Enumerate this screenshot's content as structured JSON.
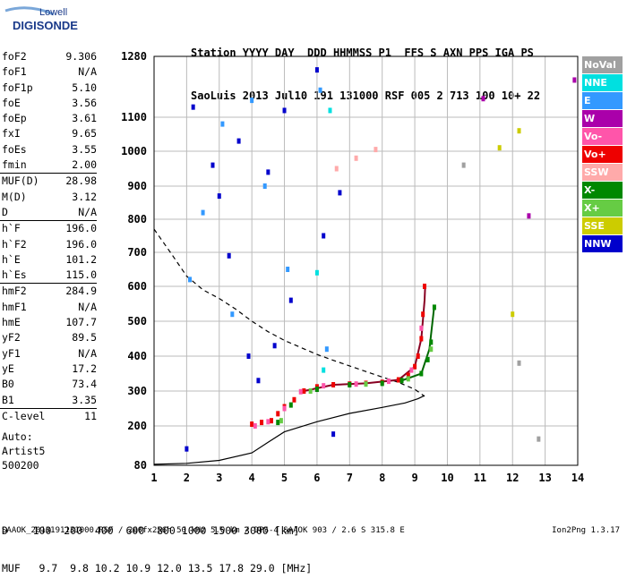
{
  "logo": {
    "line1": "Lowell",
    "line2": "DIGISONDE"
  },
  "header": {
    "labels": "Station YYYY DAY  DDD HHMMSS P1  FFS S AXN PPS IGA PS",
    "values": "SaoLuis 2013 Jul10 191 131000 RSF 005 2 713 100 10+ 22"
  },
  "params": [
    {
      "name": "foF2",
      "value": "9.306"
    },
    {
      "name": "foF1",
      "value": "N/A"
    },
    {
      "name": "foF1p",
      "value": "5.10"
    },
    {
      "name": "foE",
      "value": "3.56"
    },
    {
      "name": "foEp",
      "value": "3.61"
    },
    {
      "name": "fxI",
      "value": "9.65"
    },
    {
      "name": "foEs",
      "value": "3.55"
    },
    {
      "name": "fmin",
      "value": "2.00"
    },
    {
      "name": "MUF(D)",
      "value": "28.98"
    },
    {
      "name": "M(D)",
      "value": "3.12"
    },
    {
      "name": "D",
      "value": "N/A"
    },
    {
      "name": "h`F",
      "value": "196.0"
    },
    {
      "name": "h`F2",
      "value": "196.0"
    },
    {
      "name": "h`E",
      "value": "101.2"
    },
    {
      "name": "h`Es",
      "value": "115.0"
    },
    {
      "name": "hmF2",
      "value": "284.9"
    },
    {
      "name": "hmF1",
      "value": "N/A"
    },
    {
      "name": "hmE",
      "value": "107.7"
    },
    {
      "name": "yF2",
      "value": "89.5"
    },
    {
      "name": "yF1",
      "value": "N/A"
    },
    {
      "name": "yE",
      "value": "17.2"
    },
    {
      "name": "B0",
      "value": "73.4"
    },
    {
      "name": "B1",
      "value": "3.35"
    },
    {
      "name": "C-level",
      "value": "11"
    }
  ],
  "auto": {
    "line1": "Auto:",
    "line2": "Artist5",
    "line3": "500200"
  },
  "legend": [
    {
      "label": "NoVal",
      "color": "#a0a0a0"
    },
    {
      "label": "NNE",
      "color": "#00e0e0"
    },
    {
      "label": "E",
      "color": "#3399ff"
    },
    {
      "label": "W",
      "color": "#aa00aa"
    },
    {
      "label": "Vo-",
      "color": "#ff55aa"
    },
    {
      "label": "Vo+",
      "color": "#ee0000"
    },
    {
      "label": "SSW",
      "color": "#ffaaaa"
    },
    {
      "label": "X-",
      "color": "#008800"
    },
    {
      "label": "X+",
      "color": "#66cc44"
    },
    {
      "label": "SSE",
      "color": "#cccc00"
    },
    {
      "label": "NNW",
      "color": "#0000cc"
    }
  ],
  "muf_table": {
    "d_row": "D    100  200  400  600  800 1000 1500 3000 [km]",
    "muf_row": "MUF   9.7  9.8 10.2 10.9 12.0 13.5 17.8 29.0 [MHz]"
  },
  "footer": "SAAOK_2013191131000.RSF / 260fx256h 50 kHz 5.0 km / DPS-4 SAAOK 903 / 2.6 S 315.8 E",
  "version": "Ion2Png 1.3.17",
  "chart_data": {
    "type": "scatter",
    "xlabel": "",
    "ylabel": "",
    "xlim": [
      1,
      14
    ],
    "ylim": [
      80,
      1280
    ],
    "x_ticks": [
      1,
      2,
      3,
      4,
      5,
      6,
      7,
      8,
      9,
      10,
      11,
      12,
      13,
      14
    ],
    "y_ticks": [
      80,
      200,
      300,
      400,
      500,
      600,
      700,
      800,
      900,
      1000,
      1100,
      1280
    ],
    "grid": true,
    "legend_position": "right",
    "series": [
      {
        "name": "Vo+",
        "color": "#ee0000",
        "points": [
          [
            4.0,
            205
          ],
          [
            4.3,
            210
          ],
          [
            4.6,
            215
          ],
          [
            4.8,
            235
          ],
          [
            5.0,
            255
          ],
          [
            5.3,
            275
          ],
          [
            5.6,
            300
          ],
          [
            6.0,
            312
          ],
          [
            6.5,
            318
          ],
          [
            7.0,
            320
          ],
          [
            7.5,
            322
          ],
          [
            8.0,
            325
          ],
          [
            8.5,
            332
          ],
          [
            8.8,
            345
          ],
          [
            9.0,
            370
          ],
          [
            9.1,
            400
          ],
          [
            9.2,
            450
          ],
          [
            9.25,
            520
          ],
          [
            9.3,
            600
          ]
        ]
      },
      {
        "name": "Vo-",
        "color": "#ff55aa",
        "points": [
          [
            4.1,
            200
          ],
          [
            4.5,
            212
          ],
          [
            5.0,
            250
          ],
          [
            5.5,
            298
          ],
          [
            6.2,
            315
          ],
          [
            7.2,
            320
          ],
          [
            8.2,
            328
          ],
          [
            8.9,
            360
          ],
          [
            9.2,
            480
          ]
        ]
      },
      {
        "name": "X-",
        "color": "#008800",
        "points": [
          [
            4.8,
            210
          ],
          [
            5.2,
            260
          ],
          [
            6.0,
            305
          ],
          [
            7.0,
            318
          ],
          [
            8.0,
            322
          ],
          [
            8.6,
            330
          ],
          [
            9.2,
            350
          ],
          [
            9.4,
            390
          ],
          [
            9.5,
            440
          ],
          [
            9.6,
            540
          ]
        ]
      },
      {
        "name": "X+",
        "color": "#66cc44",
        "points": [
          [
            4.9,
            215
          ],
          [
            5.8,
            300
          ],
          [
            7.5,
            320
          ],
          [
            8.8,
            335
          ],
          [
            9.5,
            420
          ]
        ]
      },
      {
        "name": "NNW",
        "color": "#0000cc",
        "points": [
          [
            2.0,
            130
          ],
          [
            2.2,
            1130
          ],
          [
            2.8,
            960
          ],
          [
            3.0,
            870
          ],
          [
            3.3,
            690
          ],
          [
            3.6,
            1030
          ],
          [
            3.9,
            400
          ],
          [
            4.2,
            330
          ],
          [
            4.5,
            940
          ],
          [
            4.7,
            430
          ],
          [
            5.0,
            1120
          ],
          [
            5.2,
            560
          ],
          [
            6.0,
            1240
          ],
          [
            6.2,
            750
          ],
          [
            6.5,
            175
          ],
          [
            6.7,
            880
          ]
        ]
      },
      {
        "name": "E",
        "color": "#3399ff",
        "points": [
          [
            2.1,
            620
          ],
          [
            2.5,
            820
          ],
          [
            3.1,
            1080
          ],
          [
            3.4,
            520
          ],
          [
            4.0,
            1150
          ],
          [
            4.4,
            900
          ],
          [
            5.1,
            650
          ],
          [
            6.1,
            1180
          ],
          [
            6.3,
            420
          ]
        ]
      },
      {
        "name": "NNE",
        "color": "#00e0e0",
        "points": [
          [
            6.0,
            640
          ],
          [
            6.2,
            360
          ],
          [
            6.4,
            1120
          ]
        ]
      },
      {
        "name": "W",
        "color": "#aa00aa",
        "points": [
          [
            11.1,
            1155
          ],
          [
            12.5,
            810
          ],
          [
            13.9,
            1210
          ]
        ]
      },
      {
        "name": "SSE",
        "color": "#cccc00",
        "points": [
          [
            11.6,
            1010
          ],
          [
            12.0,
            520
          ],
          [
            12.2,
            1060
          ]
        ]
      },
      {
        "name": "NoVal",
        "color": "#a0a0a0",
        "points": [
          [
            10.5,
            960
          ],
          [
            12.2,
            380
          ],
          [
            12.8,
            160
          ]
        ]
      },
      {
        "name": "SSW",
        "color": "#ffaaaa",
        "points": [
          [
            6.6,
            950
          ],
          [
            7.2,
            980
          ],
          [
            7.8,
            1005
          ]
        ]
      }
    ],
    "lines": [
      {
        "kind": "profile",
        "style": "solid",
        "color": "#000000",
        "points": [
          [
            1.0,
            83
          ],
          [
            2.0,
            86
          ],
          [
            3.0,
            95
          ],
          [
            4.0,
            118
          ],
          [
            4.5,
            150
          ],
          [
            5.0,
            182
          ],
          [
            6.0,
            212
          ],
          [
            7.0,
            236
          ],
          [
            8.0,
            253
          ],
          [
            8.7,
            266
          ],
          [
            9.1,
            278
          ],
          [
            9.3,
            287
          ]
        ]
      },
      {
        "kind": "profile",
        "style": "dashed",
        "color": "#000000",
        "points": [
          [
            1.0,
            770
          ],
          [
            1.5,
            700
          ],
          [
            2.0,
            630
          ],
          [
            2.5,
            590
          ],
          [
            3.0,
            565
          ],
          [
            3.5,
            535
          ],
          [
            4.0,
            500
          ],
          [
            4.5,
            470
          ],
          [
            5.0,
            445
          ],
          [
            5.5,
            425
          ],
          [
            6.0,
            405
          ],
          [
            6.5,
            388
          ],
          [
            7.0,
            372
          ],
          [
            7.5,
            356
          ],
          [
            8.0,
            340
          ],
          [
            8.5,
            325
          ],
          [
            9.0,
            305
          ],
          [
            9.3,
            285
          ]
        ]
      },
      {
        "kind": "trace",
        "style": "solid",
        "color": "#880022",
        "points": [
          [
            5.6,
            300
          ],
          [
            6.5,
            318
          ],
          [
            7.5,
            322
          ],
          [
            8.5,
            332
          ],
          [
            9.0,
            370
          ],
          [
            9.2,
            450
          ],
          [
            9.3,
            560
          ],
          [
            9.32,
            600
          ]
        ]
      },
      {
        "kind": "trace",
        "style": "solid",
        "color": "#006600",
        "points": [
          [
            8.6,
            330
          ],
          [
            9.2,
            350
          ],
          [
            9.45,
            420
          ],
          [
            9.6,
            545
          ]
        ]
      }
    ]
  }
}
